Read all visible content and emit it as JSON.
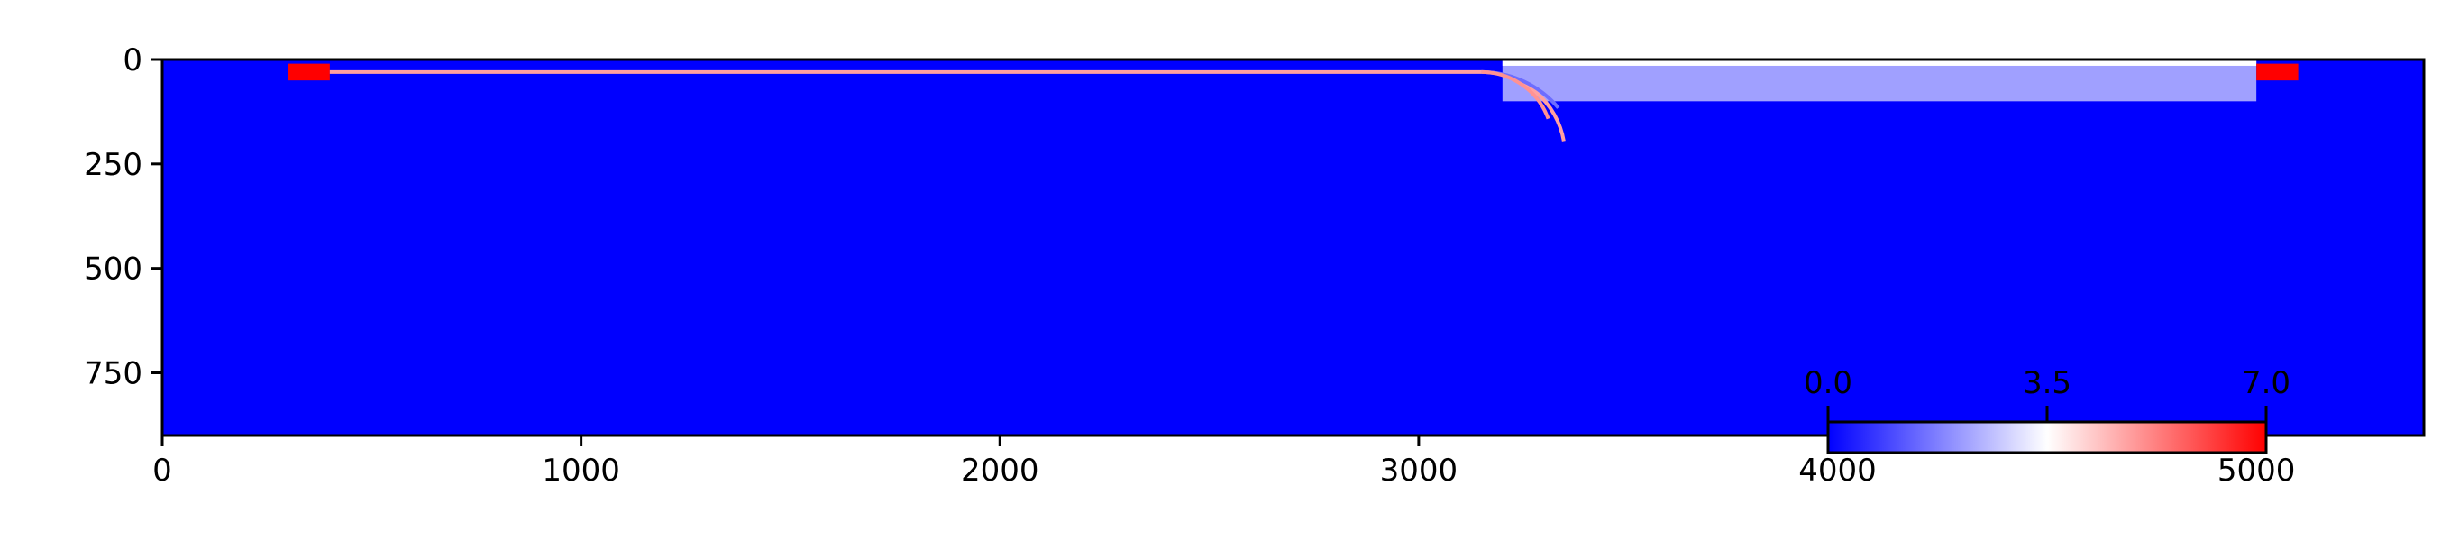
{
  "chart_data": {
    "type": "heatmap",
    "title": "",
    "xlabel": "",
    "ylabel": "",
    "xlim": [
      0,
      5400
    ],
    "ylim": [
      900,
      0
    ],
    "x_ticks": [
      0,
      1000,
      2000,
      3000,
      4000,
      5000
    ],
    "x_tick_labels": [
      "0",
      "1000",
      "2000",
      "3000",
      "4000",
      "5000"
    ],
    "y_ticks": [
      0,
      250,
      500,
      750
    ],
    "y_tick_labels": [
      "0",
      "250",
      "500",
      "750"
    ],
    "background_value": 0.0,
    "colormap": "bwr",
    "colors": {
      "low": "#0000ff",
      "mid": "#ffffff",
      "high": "#ff0000"
    },
    "regions": [
      {
        "shape": "rect",
        "x": [
          3200,
          5000
        ],
        "y": [
          0,
          100
        ],
        "value": 2.2
      },
      {
        "shape": "rect",
        "x": [
          3200,
          5000
        ],
        "y": [
          0,
          15
        ],
        "value": 3.5
      },
      {
        "shape": "rect",
        "x": [
          300,
          400
        ],
        "y": [
          10,
          50
        ],
        "value": 7.0
      },
      {
        "shape": "rect",
        "x": [
          5000,
          5100
        ],
        "y": [
          10,
          50
        ],
        "value": 7.0
      }
    ],
    "paths": [
      {
        "points": [
          [
            400,
            30
          ],
          [
            3150,
            30
          ]
        ],
        "arc_center": [
          3150,
          230
        ],
        "arc_from_deg": -90,
        "arc_to_deg": -10,
        "value": 4.8
      },
      {
        "points": [
          [
            3150,
            30
          ]
        ],
        "arc_center": [
          3150,
          270
        ],
        "arc_from_deg": -90,
        "arc_to_deg": -40,
        "value": 1.5
      },
      {
        "points": [
          [
            3150,
            30
          ]
        ],
        "arc_center": [
          3150,
          200
        ],
        "arc_from_deg": -90,
        "arc_to_deg": -20,
        "value": 5.0
      }
    ],
    "colorbar": {
      "ticks": [
        0.0,
        3.5,
        7.0
      ],
      "tick_labels": [
        "0.0",
        "3.5",
        "7.0"
      ],
      "range": [
        0.0,
        7.0
      ],
      "placement": "bottom-right inset",
      "orientation": "horizontal"
    }
  }
}
